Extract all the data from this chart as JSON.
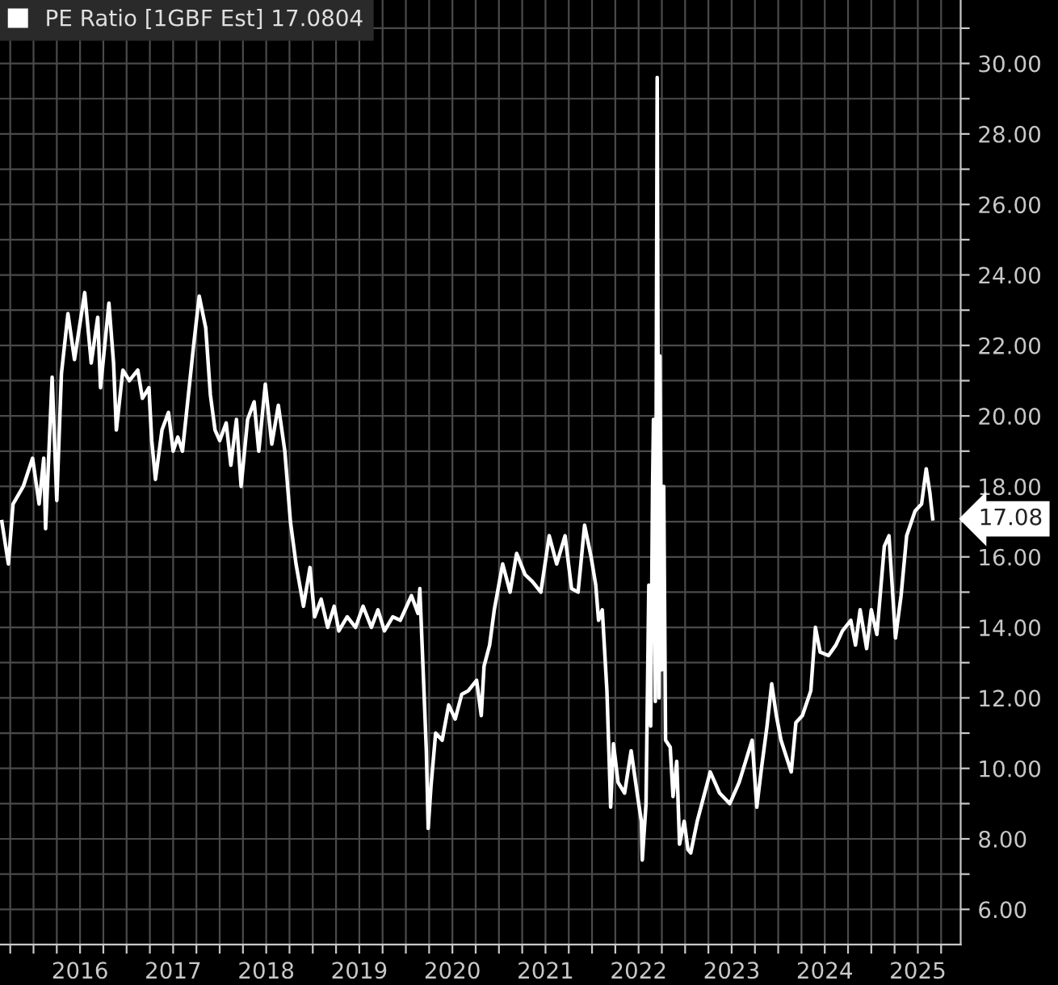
{
  "chart_data": {
    "type": "line",
    "x": [
      2015.66,
      2015.73,
      2015.78,
      2015.89,
      2015.99,
      2016.06,
      2016.11,
      2016.13,
      2016.2,
      2016.25,
      2016.3,
      2016.37,
      2016.44,
      2016.55,
      2016.62,
      2016.69,
      2016.72,
      2016.81,
      2016.86,
      2016.89,
      2016.96,
      2017.03,
      2017.12,
      2017.17,
      2017.24,
      2017.27,
      2017.31,
      2017.38,
      2017.45,
      2017.5,
      2017.55,
      2017.6,
      2017.66,
      2017.72,
      2017.78,
      2017.85,
      2017.9,
      2017.95,
      2018.0,
      2018.07,
      2018.12,
      2018.18,
      2018.23,
      2018.3,
      2018.37,
      2018.42,
      2018.49,
      2018.56,
      2018.63,
      2018.7,
      2018.76,
      2018.82,
      2018.9,
      2018.97,
      2019.02,
      2019.09,
      2019.16,
      2019.23,
      2019.28,
      2019.37,
      2019.46,
      2019.54,
      2019.63,
      2019.7,
      2019.77,
      2019.86,
      2019.94,
      2020.06,
      2020.13,
      2020.15,
      2020.19,
      2020.22,
      2020.24,
      2020.27,
      2020.32,
      2020.39,
      2020.46,
      2020.53,
      2020.6,
      2020.67,
      2020.76,
      2020.81,
      2020.84,
      2020.9,
      2020.95,
      2021.04,
      2021.12,
      2021.19,
      2021.28,
      2021.36,
      2021.45,
      2021.54,
      2021.62,
      2021.71,
      2021.78,
      2021.85,
      2021.92,
      2021.99,
      2022.04,
      2022.07,
      2022.11,
      2022.16,
      2022.2,
      2022.23,
      2022.28,
      2022.35,
      2022.42,
      2022.49,
      2022.53,
      2022.54,
      2022.58,
      2022.61,
      2022.63,
      2022.65,
      2022.66,
      2022.68,
      2022.7,
      2022.72,
      2022.73,
      2022.75,
      2022.77,
      2022.79,
      2022.84,
      2022.87,
      2022.91,
      2022.94,
      2022.99,
      2023.03,
      2023.06,
      2023.13,
      2023.27,
      2023.37,
      2023.48,
      2023.58,
      2023.65,
      2023.72,
      2023.77,
      2023.82,
      2023.88,
      2023.93,
      2023.98,
      2024.03,
      2024.14,
      2024.19,
      2024.26,
      2024.35,
      2024.4,
      2024.45,
      2024.54,
      2024.62,
      2024.69,
      2024.78,
      2024.83,
      2024.88,
      2024.95,
      2025.0,
      2025.06,
      2025.14,
      2025.19,
      2025.26,
      2025.32,
      2025.38,
      2025.47,
      2025.54,
      2025.59,
      2025.63,
      2025.66
    ],
    "series": [
      {
        "name": "PE Ratio [1GBF Est] 17.0804",
        "color": "#ffffff",
        "values": [
          17.0,
          15.8,
          17.5,
          18.0,
          18.8,
          17.5,
          18.8,
          16.8,
          21.1,
          17.6,
          21.2,
          22.9,
          21.6,
          23.5,
          21.5,
          22.8,
          20.8,
          23.2,
          21.5,
          19.6,
          21.3,
          21.0,
          21.3,
          20.5,
          20.8,
          19.3,
          18.2,
          19.6,
          20.1,
          19.0,
          19.4,
          19.0,
          20.5,
          22.0,
          23.4,
          22.5,
          20.6,
          19.6,
          19.3,
          19.8,
          18.6,
          19.9,
          18.0,
          19.9,
          20.4,
          19.0,
          20.9,
          19.2,
          20.3,
          19.0,
          17.0,
          15.8,
          14.6,
          15.7,
          14.3,
          14.8,
          14.0,
          14.6,
          13.9,
          14.3,
          14.0,
          14.6,
          14.0,
          14.5,
          13.9,
          14.3,
          14.2,
          14.9,
          14.4,
          15.1,
          12.5,
          10.5,
          8.3,
          9.5,
          11.0,
          10.8,
          11.8,
          11.4,
          12.1,
          12.2,
          12.5,
          11.5,
          12.9,
          13.5,
          14.5,
          15.8,
          15.0,
          16.1,
          15.5,
          15.3,
          15.0,
          16.6,
          15.8,
          16.6,
          15.1,
          15.0,
          16.9,
          16.0,
          15.2,
          14.2,
          14.5,
          12.2,
          8.9,
          10.7,
          9.6,
          9.3,
          10.5,
          9.2,
          8.5,
          7.4,
          9.0,
          15.2,
          11.2,
          17.9,
          19.9,
          11.9,
          29.6,
          12.0,
          21.7,
          12.8,
          18.0,
          10.8,
          10.6,
          9.2,
          10.2,
          7.85,
          8.5,
          7.7,
          7.6,
          8.5,
          9.9,
          9.3,
          9.0,
          9.6,
          10.2,
          10.8,
          8.9,
          10.0,
          11.2,
          12.4,
          11.5,
          10.8,
          9.9,
          11.3,
          11.5,
          12.2,
          14.0,
          13.3,
          13.2,
          13.5,
          13.9,
          14.2,
          13.5,
          14.5,
          13.4,
          14.5,
          13.8,
          16.3,
          16.6,
          13.7,
          14.9,
          16.6,
          17.3,
          17.5,
          18.5,
          17.8,
          17.08
        ]
      }
    ],
    "xlim": [
      2015.64,
      2025.96
    ],
    "xticks": [
      {
        "value": 2015.75,
        "label": null
      },
      {
        "value": 2016.0,
        "label": null
      },
      {
        "value": 2016.25,
        "label": null
      },
      {
        "value": 2016.5,
        "label": "2016"
      },
      {
        "value": 2016.75,
        "label": null
      },
      {
        "value": 2017.0,
        "label": null
      },
      {
        "value": 2017.25,
        "label": null
      },
      {
        "value": 2017.5,
        "label": "2017"
      },
      {
        "value": 2017.75,
        "label": null
      },
      {
        "value": 2018.0,
        "label": null
      },
      {
        "value": 2018.25,
        "label": null
      },
      {
        "value": 2018.5,
        "label": "2018"
      },
      {
        "value": 2018.75,
        "label": null
      },
      {
        "value": 2019.0,
        "label": null
      },
      {
        "value": 2019.25,
        "label": null
      },
      {
        "value": 2019.5,
        "label": "2019"
      },
      {
        "value": 2019.75,
        "label": null
      },
      {
        "value": 2020.0,
        "label": null
      },
      {
        "value": 2020.25,
        "label": null
      },
      {
        "value": 2020.5,
        "label": "2020"
      },
      {
        "value": 2020.75,
        "label": null
      },
      {
        "value": 2021.0,
        "label": null
      },
      {
        "value": 2021.25,
        "label": null
      },
      {
        "value": 2021.5,
        "label": "2021"
      },
      {
        "value": 2021.75,
        "label": null
      },
      {
        "value": 2022.0,
        "label": null
      },
      {
        "value": 2022.25,
        "label": null
      },
      {
        "value": 2022.5,
        "label": "2022"
      },
      {
        "value": 2022.75,
        "label": null
      },
      {
        "value": 2023.0,
        "label": null
      },
      {
        "value": 2023.25,
        "label": null
      },
      {
        "value": 2023.5,
        "label": "2023"
      },
      {
        "value": 2023.75,
        "label": null
      },
      {
        "value": 2024.0,
        "label": null
      },
      {
        "value": 2024.25,
        "label": null
      },
      {
        "value": 2024.5,
        "label": "2024"
      },
      {
        "value": 2024.75,
        "label": null
      },
      {
        "value": 2025.0,
        "label": null
      },
      {
        "value": 2025.25,
        "label": null
      },
      {
        "value": 2025.5,
        "label": "2025"
      },
      {
        "value": 2025.75,
        "label": null
      }
    ],
    "ylim": [
      5.0,
      31.8
    ],
    "yticks": [
      {
        "value": 6,
        "label": "6.00"
      },
      {
        "value": 7,
        "label": null
      },
      {
        "value": 8,
        "label": "8.00"
      },
      {
        "value": 9,
        "label": null
      },
      {
        "value": 10,
        "label": "10.00"
      },
      {
        "value": 11,
        "label": null
      },
      {
        "value": 12,
        "label": "12.00"
      },
      {
        "value": 13,
        "label": null
      },
      {
        "value": 14,
        "label": "14.00"
      },
      {
        "value": 15,
        "label": null
      },
      {
        "value": 16,
        "label": "16.00"
      },
      {
        "value": 17,
        "label": null
      },
      {
        "value": 18,
        "label": "18.00"
      },
      {
        "value": 19,
        "label": null
      },
      {
        "value": 20,
        "label": "20.00"
      },
      {
        "value": 21,
        "label": null
      },
      {
        "value": 22,
        "label": "22.00"
      },
      {
        "value": 23,
        "label": null
      },
      {
        "value": 24,
        "label": "24.00"
      },
      {
        "value": 25,
        "label": null
      },
      {
        "value": 26,
        "label": "26.00"
      },
      {
        "value": 27,
        "label": null
      },
      {
        "value": 28,
        "label": "28.00"
      },
      {
        "value": 29,
        "label": null
      },
      {
        "value": 30,
        "label": "30.00"
      },
      {
        "value": 31,
        "label": null
      }
    ],
    "annotations": [
      "17.08"
    ],
    "grid": true,
    "legend": "top left",
    "marker": "none",
    "line_style": "solid"
  }
}
